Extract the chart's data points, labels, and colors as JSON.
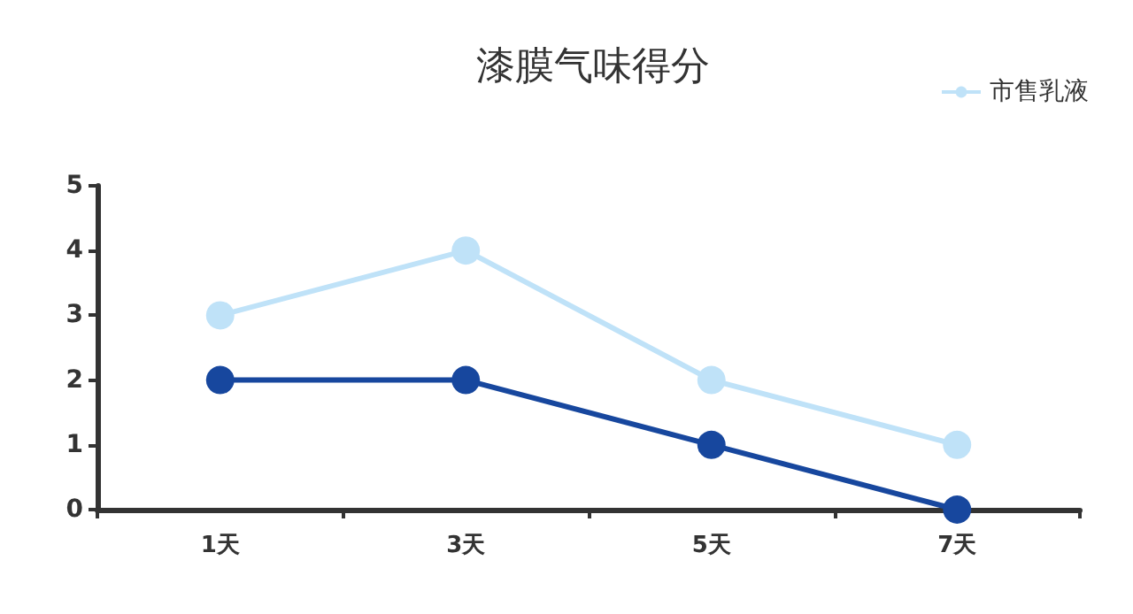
{
  "chart_data": {
    "type": "line",
    "title": "漆膜气味得分",
    "categories": [
      "1天",
      "3天",
      "5天",
      "7天"
    ],
    "series": [
      {
        "color": "#17479e",
        "values": [
          2,
          2,
          1,
          0
        ]
      },
      {
        "name": "市售乳液",
        "color": "#bfe2f8",
        "values": [
          3,
          4,
          2,
          1
        ]
      }
    ],
    "ylim": [
      0,
      5
    ],
    "yticks": [
      0,
      1,
      2,
      3,
      4,
      5
    ],
    "legend": "top right",
    "marker": "circle"
  }
}
